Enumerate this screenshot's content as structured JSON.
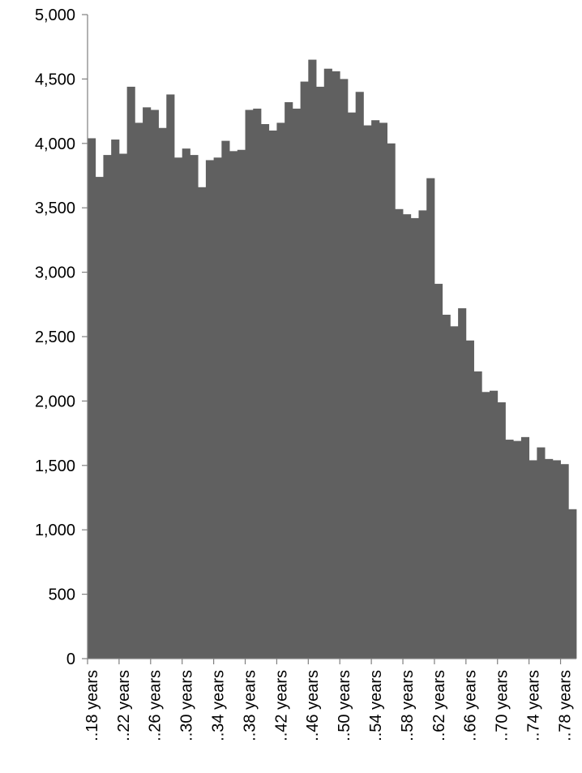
{
  "chart_data": {
    "type": "bar",
    "title": "",
    "xlabel": "",
    "ylabel": "",
    "ylim": [
      0,
      5000
    ],
    "yticks": [
      0,
      500,
      1000,
      1500,
      2000,
      2500,
      3000,
      3500,
      4000,
      4500,
      5000
    ],
    "ytick_labels": [
      "0",
      "500",
      "1,000",
      "1,500",
      "2,000",
      "2,500",
      "3,000",
      "3,500",
      "4,000",
      "4,500",
      "5,000"
    ],
    "grid": false,
    "bar_color": "#606060",
    "categories": [
      "..18 years",
      "..19 years",
      "..20 years",
      "..21 years",
      "..22 years",
      "..23 years",
      "..24 years",
      "..25 years",
      "..26 years",
      "..27 years",
      "..28 years",
      "..29 years",
      "..30 years",
      "..31 years",
      "..32 years",
      "..33 years",
      "..34 years",
      "..35 years",
      "..36 years",
      "..37 years",
      "..38 years",
      "..39 years",
      "..40 years",
      "..41 years",
      "..42 years",
      "..43 years",
      "..44 years",
      "..45 years",
      "..46 years",
      "..47 years",
      "..48 years",
      "..49 years",
      "..50 years",
      "..51 years",
      "..52 years",
      "..53 years",
      "..54 years",
      "..55 years",
      "..56 years",
      "..57 years",
      "..58 years",
      "..59 years",
      "..60 years",
      "..61 years",
      "..62 years",
      "..63 years",
      "..64 years",
      "..65 years",
      "..66 years",
      "..67 years",
      "..68 years",
      "..69 years",
      "..70 years",
      "..71 years",
      "..72 years",
      "..73 years",
      "..74 years",
      "..75 years",
      "..76 years",
      "..77 years",
      "..78 years",
      "..79 years"
    ],
    "visible_category_labels": [
      "..18 years",
      "..22 years",
      "..26 years",
      "..30 years",
      "..34 years",
      "..38 years",
      "..42 years",
      "..46 years",
      "..50 years",
      "..54 years",
      "..58 years",
      "..62 years",
      "..66 years",
      "..70 years",
      "..74 years",
      "..78 years"
    ],
    "values": [
      4040,
      3740,
      3910,
      4030,
      3920,
      4440,
      4160,
      4280,
      4260,
      4120,
      4380,
      3890,
      3960,
      3910,
      3660,
      3870,
      3890,
      4020,
      3940,
      3950,
      4260,
      4270,
      4150,
      4100,
      4160,
      4320,
      4270,
      4480,
      4650,
      4440,
      4580,
      4560,
      4500,
      4240,
      4400,
      4140,
      4180,
      4160,
      4000,
      3490,
      3450,
      3420,
      3480,
      3730,
      2910,
      2670,
      2580,
      2720,
      2470,
      2230,
      2070,
      2080,
      1990,
      1700,
      1690,
      1720,
      1540,
      1640,
      1550,
      1540,
      1510,
      1160
    ]
  }
}
